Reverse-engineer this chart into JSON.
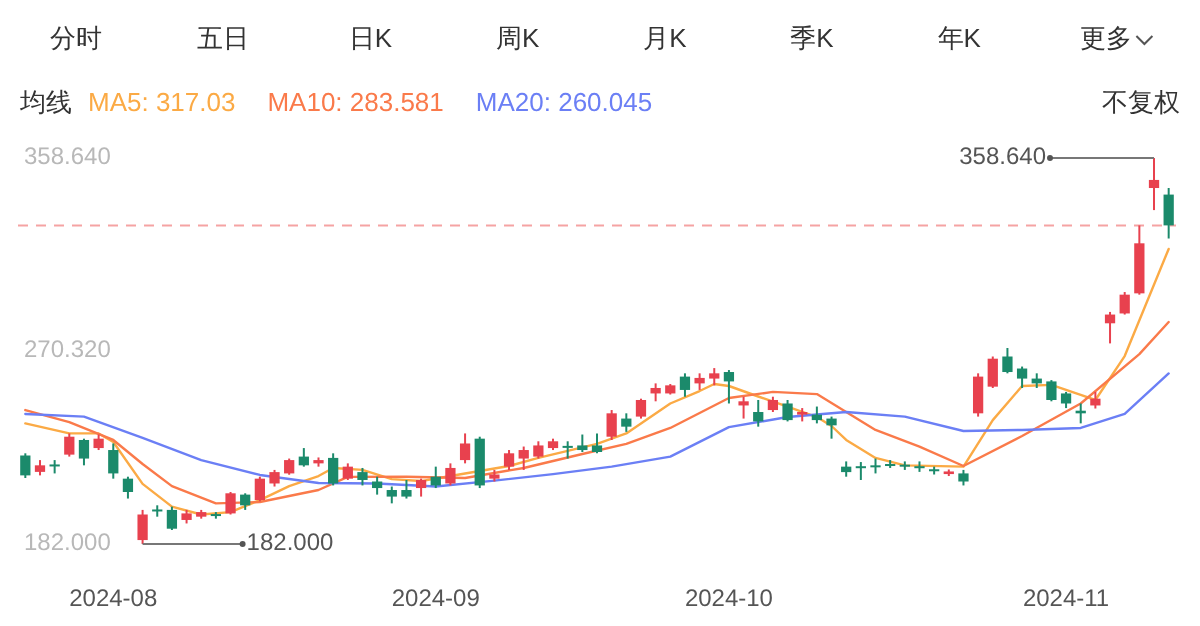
{
  "chart_data": {
    "type": "candlestick",
    "categories": [
      null,
      null,
      null,
      null,
      null,
      null,
      "2024-08",
      null,
      null,
      null,
      null,
      null,
      null,
      null,
      null,
      null,
      null,
      null,
      null,
      null,
      null,
      null,
      null,
      null,
      null,
      null,
      null,
      null,
      "2024-09",
      null,
      null,
      null,
      null,
      null,
      null,
      null,
      null,
      null,
      null,
      null,
      null,
      null,
      null,
      null,
      null,
      null,
      null,
      null,
      "2024-10",
      null,
      null,
      null,
      null,
      null,
      null,
      null,
      null,
      null,
      null,
      null,
      null,
      null,
      null,
      null,
      null,
      null,
      null,
      null,
      null,
      null,
      null,
      "2024-11",
      null,
      null,
      null,
      null,
      null,
      null,
      null
    ],
    "ohlc": [
      [
        222.5,
        223.5,
        212.2,
        213.4
      ],
      [
        215.0,
        220.4,
        213.4,
        218.0
      ],
      [
        218.4,
        220.4,
        214.3,
        217.8
      ],
      [
        222.9,
        232.6,
        222.0,
        231.1
      ],
      [
        229.6,
        230.2,
        218.0,
        221.1
      ],
      [
        225.9,
        232.1,
        225.0,
        230.2
      ],
      [
        225.0,
        228.0,
        211.9,
        214.3
      ],
      [
        211.9,
        212.8,
        202.8,
        205.8
      ],
      [
        183.8,
        197.6,
        182.0,
        195.5
      ],
      [
        197.8,
        199.7,
        194.5,
        197.0
      ],
      [
        197.6,
        199.1,
        188.4,
        189.0
      ],
      [
        193.0,
        197.6,
        191.4,
        196.0
      ],
      [
        194.5,
        197.6,
        193.6,
        196.6
      ],
      [
        195.7,
        196.6,
        193.6,
        195.2
      ],
      [
        196.0,
        205.8,
        195.5,
        205.2
      ],
      [
        204.6,
        205.2,
        197.6,
        199.7
      ],
      [
        202.1,
        212.8,
        201.5,
        211.9
      ],
      [
        209.7,
        215.9,
        208.3,
        214.9
      ],
      [
        214.3,
        221.1,
        213.7,
        220.4
      ],
      [
        222.0,
        225.9,
        217.4,
        218.0
      ],
      [
        218.9,
        221.6,
        217.4,
        220.4
      ],
      [
        221.4,
        223.5,
        208.8,
        209.7
      ],
      [
        211.9,
        218.9,
        211.3,
        217.4
      ],
      [
        214.9,
        216.8,
        208.8,
        211.3
      ],
      [
        210.6,
        212.8,
        204.6,
        207.6
      ],
      [
        206.7,
        208.3,
        200.6,
        203.7
      ],
      [
        206.7,
        211.3,
        202.8,
        203.7
      ],
      [
        207.6,
        211.9,
        203.7,
        211.3
      ],
      [
        212.8,
        217.4,
        207.6,
        208.8
      ],
      [
        209.7,
        218.9,
        208.8,
        216.8
      ],
      [
        220.4,
        232.6,
        218.9,
        228.0
      ],
      [
        230.2,
        231.1,
        207.6,
        208.8
      ],
      [
        211.9,
        215.9,
        210.6,
        213.8
      ],
      [
        217.4,
        225.0,
        215.9,
        223.5
      ],
      [
        221.1,
        226.6,
        215.9,
        225.0
      ],
      [
        222.0,
        229.0,
        221.1,
        227.1
      ],
      [
        225.9,
        230.2,
        225.0,
        229.0
      ],
      [
        226.9,
        229.0,
        221.1,
        226.3
      ],
      [
        227.1,
        232.1,
        224.1,
        225.0
      ],
      [
        227.1,
        232.6,
        223.5,
        224.1
      ],
      [
        231.1,
        243.3,
        229.6,
        241.8
      ],
      [
        239.4,
        241.8,
        233.3,
        235.7
      ],
      [
        240.3,
        248.5,
        239.4,
        247.9
      ],
      [
        250.9,
        255.5,
        247.3,
        253.4
      ],
      [
        250.9,
        255.2,
        250.4,
        254.6
      ],
      [
        258.6,
        260.1,
        249.4,
        252.5
      ],
      [
        255.5,
        260.1,
        252.5,
        258.0
      ],
      [
        257.7,
        262.5,
        254.6,
        260.1
      ],
      [
        260.7,
        261.6,
        246.3,
        256.4
      ],
      [
        245.4,
        249.4,
        239.4,
        247.3
      ],
      [
        242.4,
        247.9,
        235.7,
        238.1
      ],
      [
        243.3,
        249.4,
        242.4,
        247.9
      ],
      [
        246.3,
        247.9,
        238.1,
        238.7
      ],
      [
        241.2,
        244.2,
        238.1,
        242.4
      ],
      [
        241.2,
        244.9,
        237.2,
        238.7
      ],
      [
        239.4,
        240.3,
        230.2,
        236.3
      ],
      [
        217.4,
        219.8,
        212.8,
        214.9
      ],
      [
        217.6,
        219.5,
        211.3,
        217.1
      ],
      [
        218.0,
        221.1,
        214.3,
        217.4
      ],
      [
        218.6,
        220.4,
        216.8,
        218.0
      ],
      [
        218.3,
        219.8,
        215.9,
        217.6
      ],
      [
        217.6,
        219.8,
        215.0,
        216.8
      ],
      [
        216.2,
        217.4,
        213.8,
        215.6
      ],
      [
        214.0,
        216.1,
        213.1,
        215.2
      ],
      [
        214.3,
        215.9,
        208.8,
        210.6
      ],
      [
        241.8,
        260.1,
        240.3,
        258.6
      ],
      [
        254.0,
        267.8,
        253.4,
        266.8
      ],
      [
        267.8,
        271.7,
        260.1,
        260.7
      ],
      [
        262.3,
        263.2,
        253.4,
        257.7
      ],
      [
        257.7,
        260.1,
        253.4,
        255.5
      ],
      [
        256.4,
        257.0,
        247.3,
        247.9
      ],
      [
        250.9,
        251.6,
        244.2,
        246.3
      ],
      [
        243.0,
        246.3,
        237.2,
        241.8
      ],
      [
        245.4,
        251.6,
        244.0,
        248.5
      ],
      [
        283.0,
        288.2,
        273.8,
        287.0
      ],
      [
        287.5,
        297.3,
        287.0,
        296.1
      ],
      [
        296.7,
        327.8,
        296.1,
        319.6
      ],
      [
        344.9,
        358.64,
        334.8,
        348.6
      ],
      [
        341.9,
        344.9,
        321.8,
        327.8
      ]
    ],
    "colors": [
      "#1b8a6b",
      "#e8414e",
      "#1b8a6b",
      "#e8414e",
      "#1b8a6b",
      "#e8414e",
      "#1b8a6b",
      "#1b8a6b",
      "#e8414e",
      "#1b8a6b",
      "#1b8a6b",
      "#e8414e",
      "#e8414e",
      "#1b8a6b",
      "#e8414e",
      "#1b8a6b",
      "#e8414e",
      "#e8414e",
      "#e8414e",
      "#1b8a6b",
      "#e8414e",
      "#1b8a6b",
      "#e8414e",
      "#1b8a6b",
      "#1b8a6b",
      "#1b8a6b",
      "#1b8a6b",
      "#e8414e",
      "#1b8a6b",
      "#e8414e",
      "#e8414e",
      "#1b8a6b",
      "#e8414e",
      "#e8414e",
      "#e8414e",
      "#e8414e",
      "#e8414e",
      "#1b8a6b",
      "#1b8a6b",
      "#1b8a6b",
      "#e8414e",
      "#1b8a6b",
      "#e8414e",
      "#e8414e",
      "#e8414e",
      "#1b8a6b",
      "#e8414e",
      "#e8414e",
      "#1b8a6b",
      "#e8414e",
      "#1b8a6b",
      "#e8414e",
      "#1b8a6b",
      "#e8414e",
      "#1b8a6b",
      "#1b8a6b",
      "#1b8a6b",
      "#1b8a6b",
      "#1b8a6b",
      "#1b8a6b",
      "#1b8a6b",
      "#1b8a6b",
      "#1b8a6b",
      "#e8414e",
      "#1b8a6b",
      "#e8414e",
      "#e8414e",
      "#1b8a6b",
      "#1b8a6b",
      "#1b8a6b",
      "#1b8a6b",
      "#1b8a6b",
      "#1b8a6b",
      "#e8414e",
      "#e8414e",
      "#e8414e",
      "#e8414e",
      "#e8414e",
      "#1b8a6b"
    ],
    "series": [
      {
        "name": "MA5: 317.03",
        "type": "line",
        "color": "#fbaa45",
        "values": [
          237.2,
          null,
          null,
          232.6,
          null,
          232.6,
          228.7,
          null,
          209.5,
          null,
          199.1,
          null,
          195.5,
          null,
          196.6,
          null,
          202.1,
          null,
          208.5,
          null,
          213.1,
          216.8,
          null,
          215.9,
          null,
          211.7,
          null,
          210.8,
          null,
          213.1,
          null,
          215.4,
          null,
          217.7,
          null,
          221.4,
          null,
          224.6,
          null,
          227.8,
          null,
          232.6,
          null,
          null,
          246.3,
          null,
          252.0,
          255.2,
          254.3,
          null,
          249.5,
          null,
          244.9,
          null,
          240.1,
          236.0,
          229.6,
          null,
          221.4,
          null,
          218.0,
          null,
          null,
          null,
          217.4,
          null,
          238.7,
          null,
          254.3,
          null,
          254.8,
          null,
          250.2,
          247.9,
          null,
          268.0,
          null,
          null,
          317.03
        ]
      },
      {
        "name": "MA10: 283.581",
        "type": "line",
        "color": "#fa7a4a",
        "values": [
          243.3,
          null,
          null,
          237.8,
          null,
          null,
          229.6,
          null,
          218.6,
          null,
          208.5,
          null,
          null,
          200.6,
          null,
          null,
          201.2,
          null,
          null,
          null,
          206.7,
          null,
          212.7,
          null,
          null,
          null,
          212.8,
          null,
          null,
          null,
          212.2,
          null,
          null,
          null,
          216.8,
          null,
          null,
          null,
          223.2,
          null,
          null,
          227.8,
          null,
          null,
          235.1,
          null,
          null,
          null,
          248.8,
          null,
          null,
          251.6,
          null,
          null,
          250.6,
          null,
          242.4,
          null,
          234.2,
          null,
          null,
          226.6,
          null,
          null,
          217.7,
          null,
          null,
          null,
          231.4,
          null,
          null,
          null,
          246.3,
          null,
          null,
          null,
          268.9,
          null,
          283.581
        ]
      },
      {
        "name": "MA20: 260.045",
        "type": "line",
        "color": "#6b7ff5",
        "values": [
          241.5,
          null,
          null,
          null,
          240.3,
          null,
          null,
          null,
          230.6,
          null,
          null,
          null,
          220.4,
          null,
          null,
          null,
          213.6,
          null,
          null,
          null,
          209.9,
          null,
          null,
          null,
          209.7,
          null,
          null,
          null,
          208.3,
          null,
          null,
          null,
          211.0,
          null,
          null,
          null,
          214.0,
          null,
          null,
          null,
          217.4,
          null,
          null,
          null,
          222.0,
          null,
          null,
          null,
          235.5,
          null,
          null,
          null,
          240.1,
          null,
          null,
          null,
          242.4,
          null,
          null,
          null,
          240.3,
          null,
          null,
          null,
          233.7,
          null,
          null,
          null,
          234.2,
          null,
          null,
          null,
          235.1,
          null,
          null,
          241.5,
          null,
          null,
          260.045
        ]
      }
    ],
    "legend_title": "均线",
    "legend": "top left",
    "ylim": [
      182,
      358.64
    ],
    "yticks": [
      {
        "value": 358.64,
        "label": "358.640"
      },
      {
        "value": 270.32,
        "label": "270.320"
      },
      {
        "value": 182,
        "label": "182.000"
      }
    ],
    "ref_lines": [
      {
        "axis": "y",
        "value": 327.8,
        "color": "#f5a3a3",
        "line_style": "dashed"
      }
    ],
    "annotations": [
      "分时",
      "五日",
      "日K",
      "周K",
      "月K",
      "季K",
      "年K",
      "更多",
      "不复权",
      "358.640",
      "182.000"
    ]
  }
}
